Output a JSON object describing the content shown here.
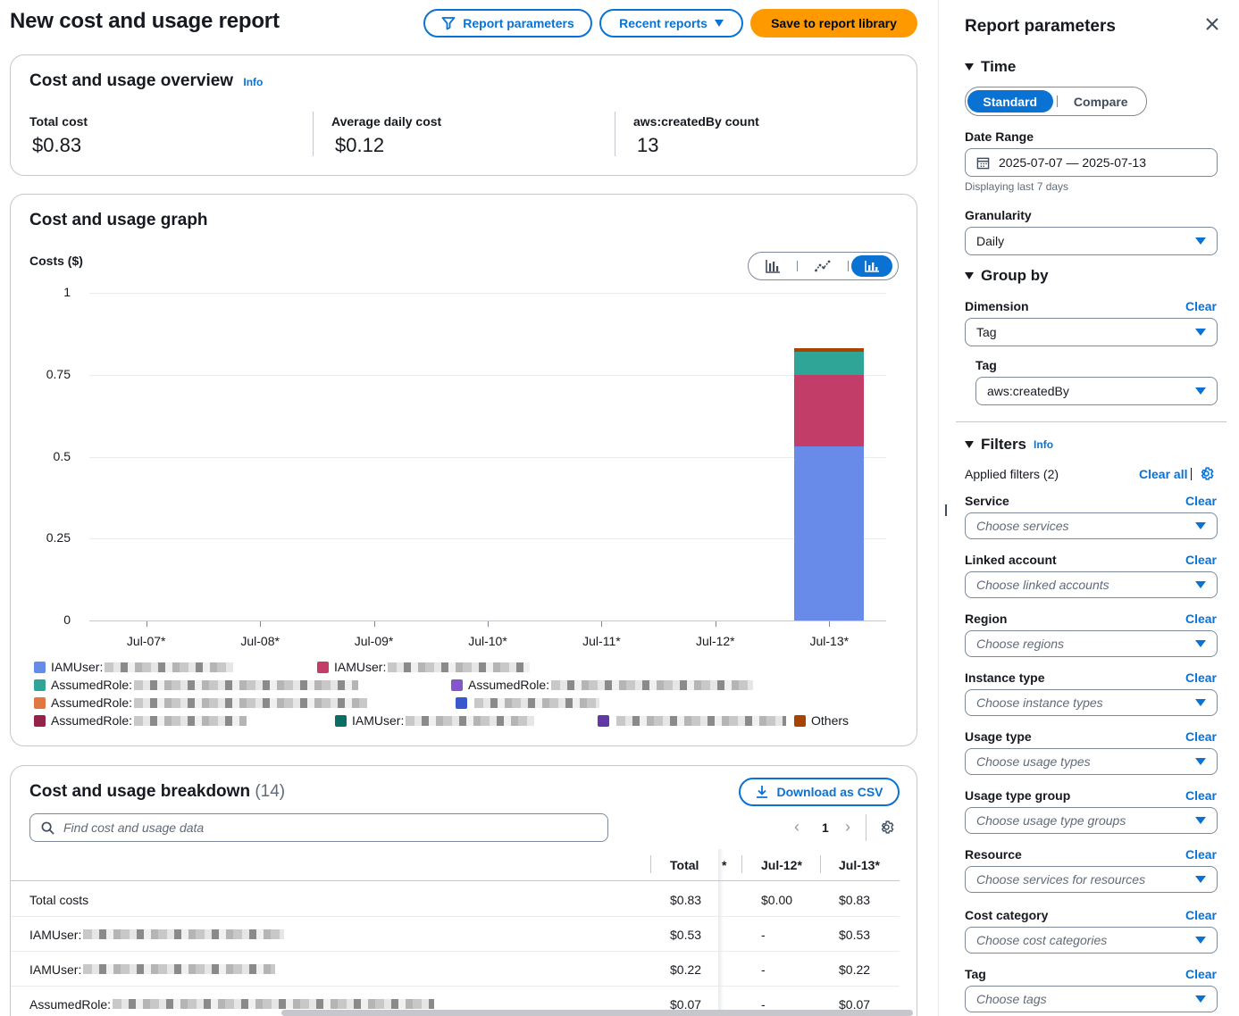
{
  "header": {
    "title": "New cost and usage report",
    "report_parameters_label": "Report parameters",
    "recent_reports_label": "Recent reports",
    "save_label": "Save to report library"
  },
  "overview": {
    "title": "Cost and usage overview",
    "info": "Info",
    "kpis": [
      {
        "label": "Total cost",
        "value": "$0.83"
      },
      {
        "label": "Average daily cost",
        "value": "$0.12"
      },
      {
        "label": "aws:createdBy count",
        "value": "13"
      }
    ]
  },
  "graph": {
    "title": "Cost and usage graph",
    "chart_types": [
      "bar-chart-icon",
      "line-chart-icon",
      "stacked-bar-chart-icon"
    ]
  },
  "chart_data": {
    "type": "bar",
    "stacked": true,
    "ylabel": "Costs ($)",
    "ylim": [
      0,
      1
    ],
    "yticks": [
      "1",
      "0.75",
      "0.5",
      "0.25",
      "0"
    ],
    "categories": [
      "Jul-07*",
      "Jul-08*",
      "Jul-09*",
      "Jul-10*",
      "Jul-11*",
      "Jul-12*",
      "Jul-13*"
    ],
    "grid": true,
    "legend_position": "bottom",
    "series": [
      {
        "name": "IAMUser:",
        "color": "#688ae8",
        "values": [
          0,
          0,
          0,
          0,
          0,
          0,
          0.53
        ]
      },
      {
        "name": "IAMUser:",
        "color": "#c33d69",
        "values": [
          0,
          0,
          0,
          0,
          0,
          0,
          0.22
        ]
      },
      {
        "name": "AssumedRole:",
        "color": "#2ea597",
        "values": [
          0,
          0,
          0,
          0,
          0,
          0,
          0.07
        ]
      },
      {
        "name": "AssumedRole:",
        "color": "#8456ce",
        "values": [
          0,
          0,
          0,
          0,
          0,
          0,
          0.0
        ]
      },
      {
        "name": "AssumedRole:",
        "color": "#e07941",
        "values": [
          0,
          0,
          0,
          0,
          0,
          0,
          0.0
        ]
      },
      {
        "name": "",
        "color": "#3759ce",
        "values": [
          0,
          0,
          0,
          0,
          0,
          0,
          0.0
        ]
      },
      {
        "name": "AssumedRole:",
        "color": "#962249",
        "values": [
          0,
          0,
          0,
          0,
          0,
          0,
          0.0
        ]
      },
      {
        "name": "IAMUser:",
        "color": "#096f64",
        "values": [
          0,
          0,
          0,
          0,
          0,
          0,
          0.0
        ]
      },
      {
        "name": "",
        "color": "#6237a7",
        "values": [
          0,
          0,
          0,
          0,
          0,
          0,
          0.0
        ]
      },
      {
        "name": "Others",
        "color": "#a84401",
        "values": [
          0,
          0,
          0,
          0,
          0,
          0,
          0.01
        ]
      }
    ]
  },
  "breakdown": {
    "title": "Cost and usage breakdown",
    "count": "(14)",
    "download_label": "Download as CSV",
    "search_placeholder": "Find cost and usage data",
    "page": "1",
    "columns": [
      "Total",
      "*",
      "Jul-12*",
      "Jul-13*"
    ],
    "rows": [
      {
        "name": "Total costs",
        "total": "$0.83",
        "jul12": "$0.00",
        "jul13": "$0.83"
      },
      {
        "name": "IAMUser:",
        "total": "$0.53",
        "jul12": "-",
        "jul13": "$0.53"
      },
      {
        "name": "IAMUser:",
        "total": "$0.22",
        "jul12": "-",
        "jul13": "$0.22"
      },
      {
        "name": "AssumedRole:",
        "total": "$0.07",
        "jul12": "-",
        "jul13": "$0.07"
      }
    ]
  },
  "side_panel": {
    "title": "Report parameters",
    "time": {
      "heading": "Time",
      "standard_label": "Standard",
      "compare_label": "Compare",
      "date_range_label": "Date Range",
      "date_range_value": "2025-07-07 — 2025-07-13",
      "date_range_hint": "Displaying last 7 days",
      "granularity_label": "Granularity",
      "granularity_value": "Daily"
    },
    "group_by": {
      "heading": "Group by",
      "dimension_label": "Dimension",
      "dimension_value": "Tag",
      "tag_label": "Tag",
      "tag_value": "aws:createdBy",
      "clear": "Clear"
    },
    "filters": {
      "heading": "Filters",
      "info": "Info",
      "applied": "Applied filters (2)",
      "clear_all": "Clear all",
      "clear": "Clear",
      "items": [
        {
          "label": "Service",
          "placeholder": "Choose services"
        },
        {
          "label": "Linked account",
          "placeholder": "Choose linked accounts"
        },
        {
          "label": "Region",
          "placeholder": "Choose regions"
        },
        {
          "label": "Instance type",
          "placeholder": "Choose instance types"
        },
        {
          "label": "Usage type",
          "placeholder": "Choose usage types"
        },
        {
          "label": "Usage type group",
          "placeholder": "Choose usage type groups"
        },
        {
          "label": "Resource",
          "placeholder": "Choose services for resources"
        },
        {
          "label": "Cost category",
          "placeholder": "Choose cost categories"
        },
        {
          "label": "Tag",
          "placeholder": "Choose tags"
        }
      ]
    }
  }
}
